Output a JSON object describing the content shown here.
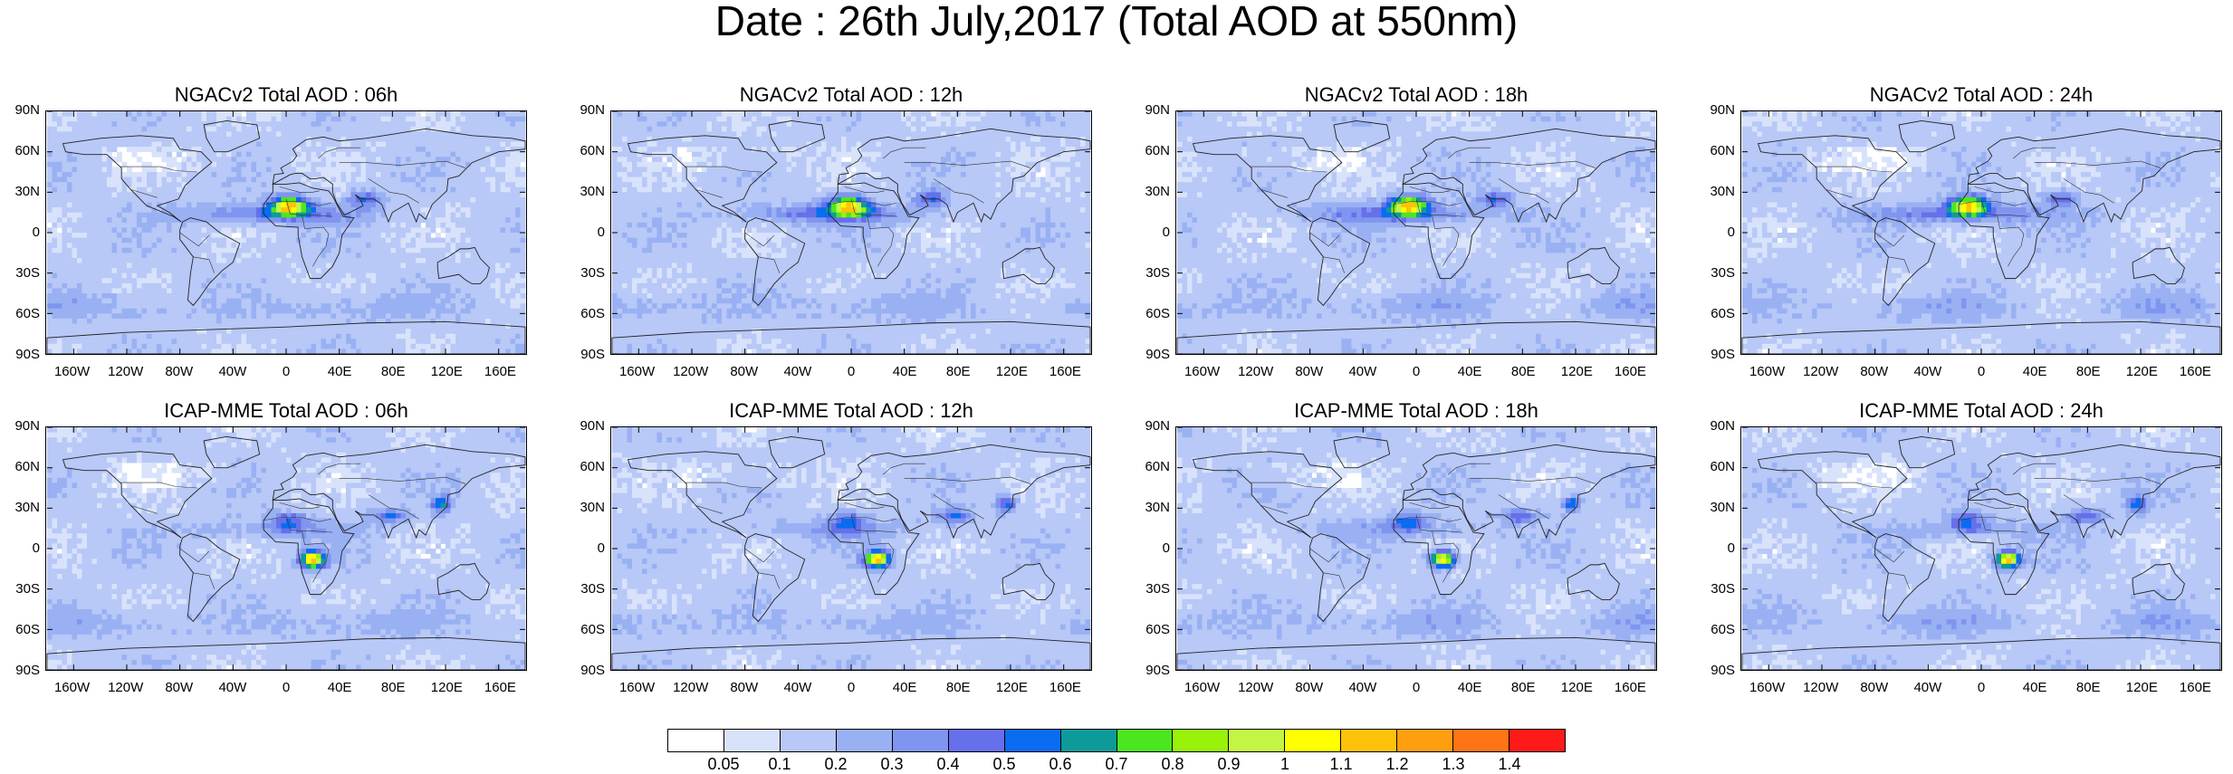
{
  "title": "Date : 26th July,2017 (Total AOD at 550nm)",
  "panels": [
    {
      "title": "NGACv2 Total AOD : 06h",
      "model": "NGACv2",
      "hour": "06h"
    },
    {
      "title": "NGACv2 Total AOD : 12h",
      "model": "NGACv2",
      "hour": "12h"
    },
    {
      "title": "NGACv2 Total AOD : 18h",
      "model": "NGACv2",
      "hour": "18h"
    },
    {
      "title": "NGACv2 Total AOD : 24h",
      "model": "NGACv2",
      "hour": "24h"
    },
    {
      "title": "ICAP-MME Total AOD : 06h",
      "model": "ICAP-MME",
      "hour": "06h"
    },
    {
      "title": "ICAP-MME Total AOD : 12h",
      "model": "ICAP-MME",
      "hour": "12h"
    },
    {
      "title": "ICAP-MME Total AOD : 18h",
      "model": "ICAP-MME",
      "hour": "18h"
    },
    {
      "title": "ICAP-MME Total AOD : 24h",
      "model": "ICAP-MME",
      "hour": "24h"
    }
  ],
  "lat_ticks": [
    "90N",
    "60N",
    "30N",
    "0",
    "30S",
    "60S",
    "90S"
  ],
  "lon_ticks": [
    "160W",
    "120W",
    "80W",
    "40W",
    "0",
    "40E",
    "80E",
    "120E",
    "160E"
  ],
  "lat_values": [
    90,
    60,
    30,
    0,
    -30,
    -60,
    -90
  ],
  "lon_values": [
    -160,
    -120,
    -80,
    -40,
    0,
    40,
    80,
    120,
    160
  ],
  "colorbar": {
    "labels": [
      "0.05",
      "0.1",
      "0.2",
      "0.3",
      "0.4",
      "0.5",
      "0.6",
      "0.7",
      "0.8",
      "0.9",
      "1",
      "1.1",
      "1.2",
      "1.3",
      "1.4"
    ],
    "colors": [
      "#ffffff",
      "#d8e2fb",
      "#b8c8f7",
      "#99b1f3",
      "#8095ef",
      "#6670ea",
      "#0a6cf0",
      "#0f9a9a",
      "#4ce621",
      "#98f20a",
      "#c4f545",
      "#ffff00",
      "#ffc20a",
      "#ff9e0f",
      "#ff7414",
      "#ff1a1a"
    ]
  }
}
